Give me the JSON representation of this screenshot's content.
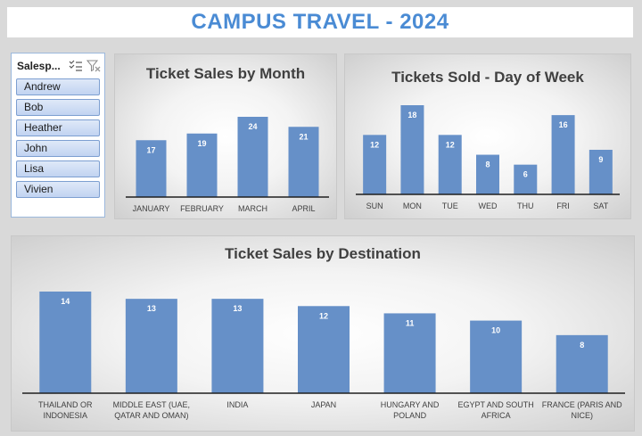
{
  "header": {
    "title": "CAMPUS TRAVEL - 2024"
  },
  "slicer": {
    "title": "Salesp...",
    "icons": [
      "multi-select-icon",
      "clear-filter-icon"
    ],
    "items": [
      "Andrew",
      "Bob",
      "Heather",
      "John",
      "Lisa",
      "Vivien"
    ]
  },
  "chart_data": [
    {
      "type": "bar",
      "title": "Ticket Sales by Month",
      "categories": [
        "JANUARY",
        "FEBRUARY",
        "MARCH",
        "APRIL"
      ],
      "values": [
        17,
        19,
        24,
        21
      ],
      "color": "#6690c8"
    },
    {
      "type": "bar",
      "title": "Tickets Sold - Day of Week",
      "categories": [
        "SUN",
        "MON",
        "TUE",
        "WED",
        "THU",
        "FRI",
        "SAT"
      ],
      "values": [
        12,
        18,
        12,
        8,
        6,
        16,
        9
      ],
      "color": "#6690c8"
    },
    {
      "type": "bar",
      "title": "Ticket Sales by Destination",
      "categories": [
        [
          "THAILAND OR",
          "INDONESIA"
        ],
        [
          "MIDDLE EAST (UAE,",
          "QATAR AND OMAN)"
        ],
        [
          "INDIA"
        ],
        [
          "JAPAN"
        ],
        [
          "HUNGARY AND",
          "POLAND"
        ],
        [
          "EGYPT AND SOUTH",
          "AFRICA"
        ],
        [
          "FRANCE (PARIS AND",
          "NICE)"
        ]
      ],
      "values": [
        14,
        13,
        13,
        12,
        11,
        10,
        8
      ],
      "color": "#6690c8"
    }
  ]
}
